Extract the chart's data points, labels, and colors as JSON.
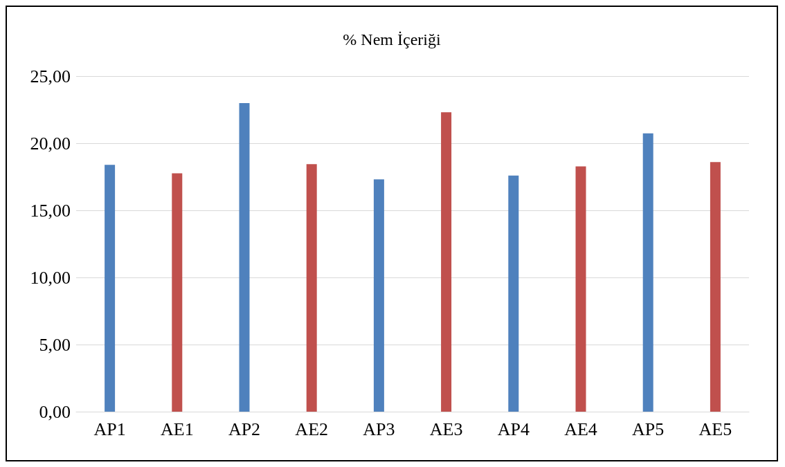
{
  "chart_data": {
    "type": "bar",
    "title": "% Nem İçeriği",
    "categories": [
      "AP1",
      "AE1",
      "AP2",
      "AE2",
      "AP3",
      "AE3",
      "AP4",
      "AE4",
      "AP5",
      "AE5"
    ],
    "values": [
      18.39,
      17.76,
      22.99,
      18.44,
      17.31,
      22.31,
      17.59,
      18.27,
      20.73,
      18.59
    ],
    "colors": [
      "#4f81bd",
      "#c0504d",
      "#4f81bd",
      "#c0504d",
      "#4f81bd",
      "#c0504d",
      "#4f81bd",
      "#c0504d",
      "#4f81bd",
      "#c0504d"
    ],
    "ylim": [
      0,
      25
    ],
    "yticks": [
      {
        "value": 0,
        "label": "0,00"
      },
      {
        "value": 5,
        "label": "5,00"
      },
      {
        "value": 10,
        "label": "10,00"
      },
      {
        "value": 15,
        "label": "15,00"
      },
      {
        "value": 20,
        "label": "20,00"
      },
      {
        "value": 25,
        "label": "25,00"
      }
    ],
    "grid": "y"
  }
}
